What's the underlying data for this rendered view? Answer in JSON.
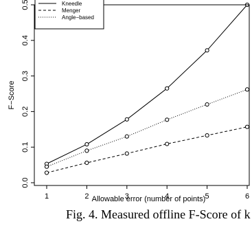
{
  "chart_data": {
    "type": "line",
    "title": "",
    "xlabel": "Allowable error (number of points)",
    "ylabel": "F−Score",
    "xlim": [
      1,
      6
    ],
    "ylim": [
      0,
      0.5
    ],
    "x": [
      1,
      2,
      3,
      4,
      5,
      6
    ],
    "x_ticks": [
      "1",
      "2",
      "3",
      "4",
      "5",
      "6"
    ],
    "y_ticks": [
      "0.0",
      "0.1",
      "0.2",
      "0.3",
      "0.4",
      "0.5"
    ],
    "grid": false,
    "legend": "top-left",
    "series": [
      {
        "name": "Kneedle",
        "line": "solid",
        "values": [
          0.053,
          0.108,
          0.178,
          0.265,
          0.372,
          0.5
        ]
      },
      {
        "name": "Menger",
        "line": "dashed",
        "values": [
          0.028,
          0.056,
          0.082,
          0.109,
          0.133,
          0.157
        ]
      },
      {
        "name": "Angle−based",
        "line": "dotted",
        "values": [
          0.045,
          0.09,
          0.13,
          0.177,
          0.22,
          0.262
        ]
      }
    ]
  },
  "caption": "Fig. 4. Measured offline F-Score of k"
}
